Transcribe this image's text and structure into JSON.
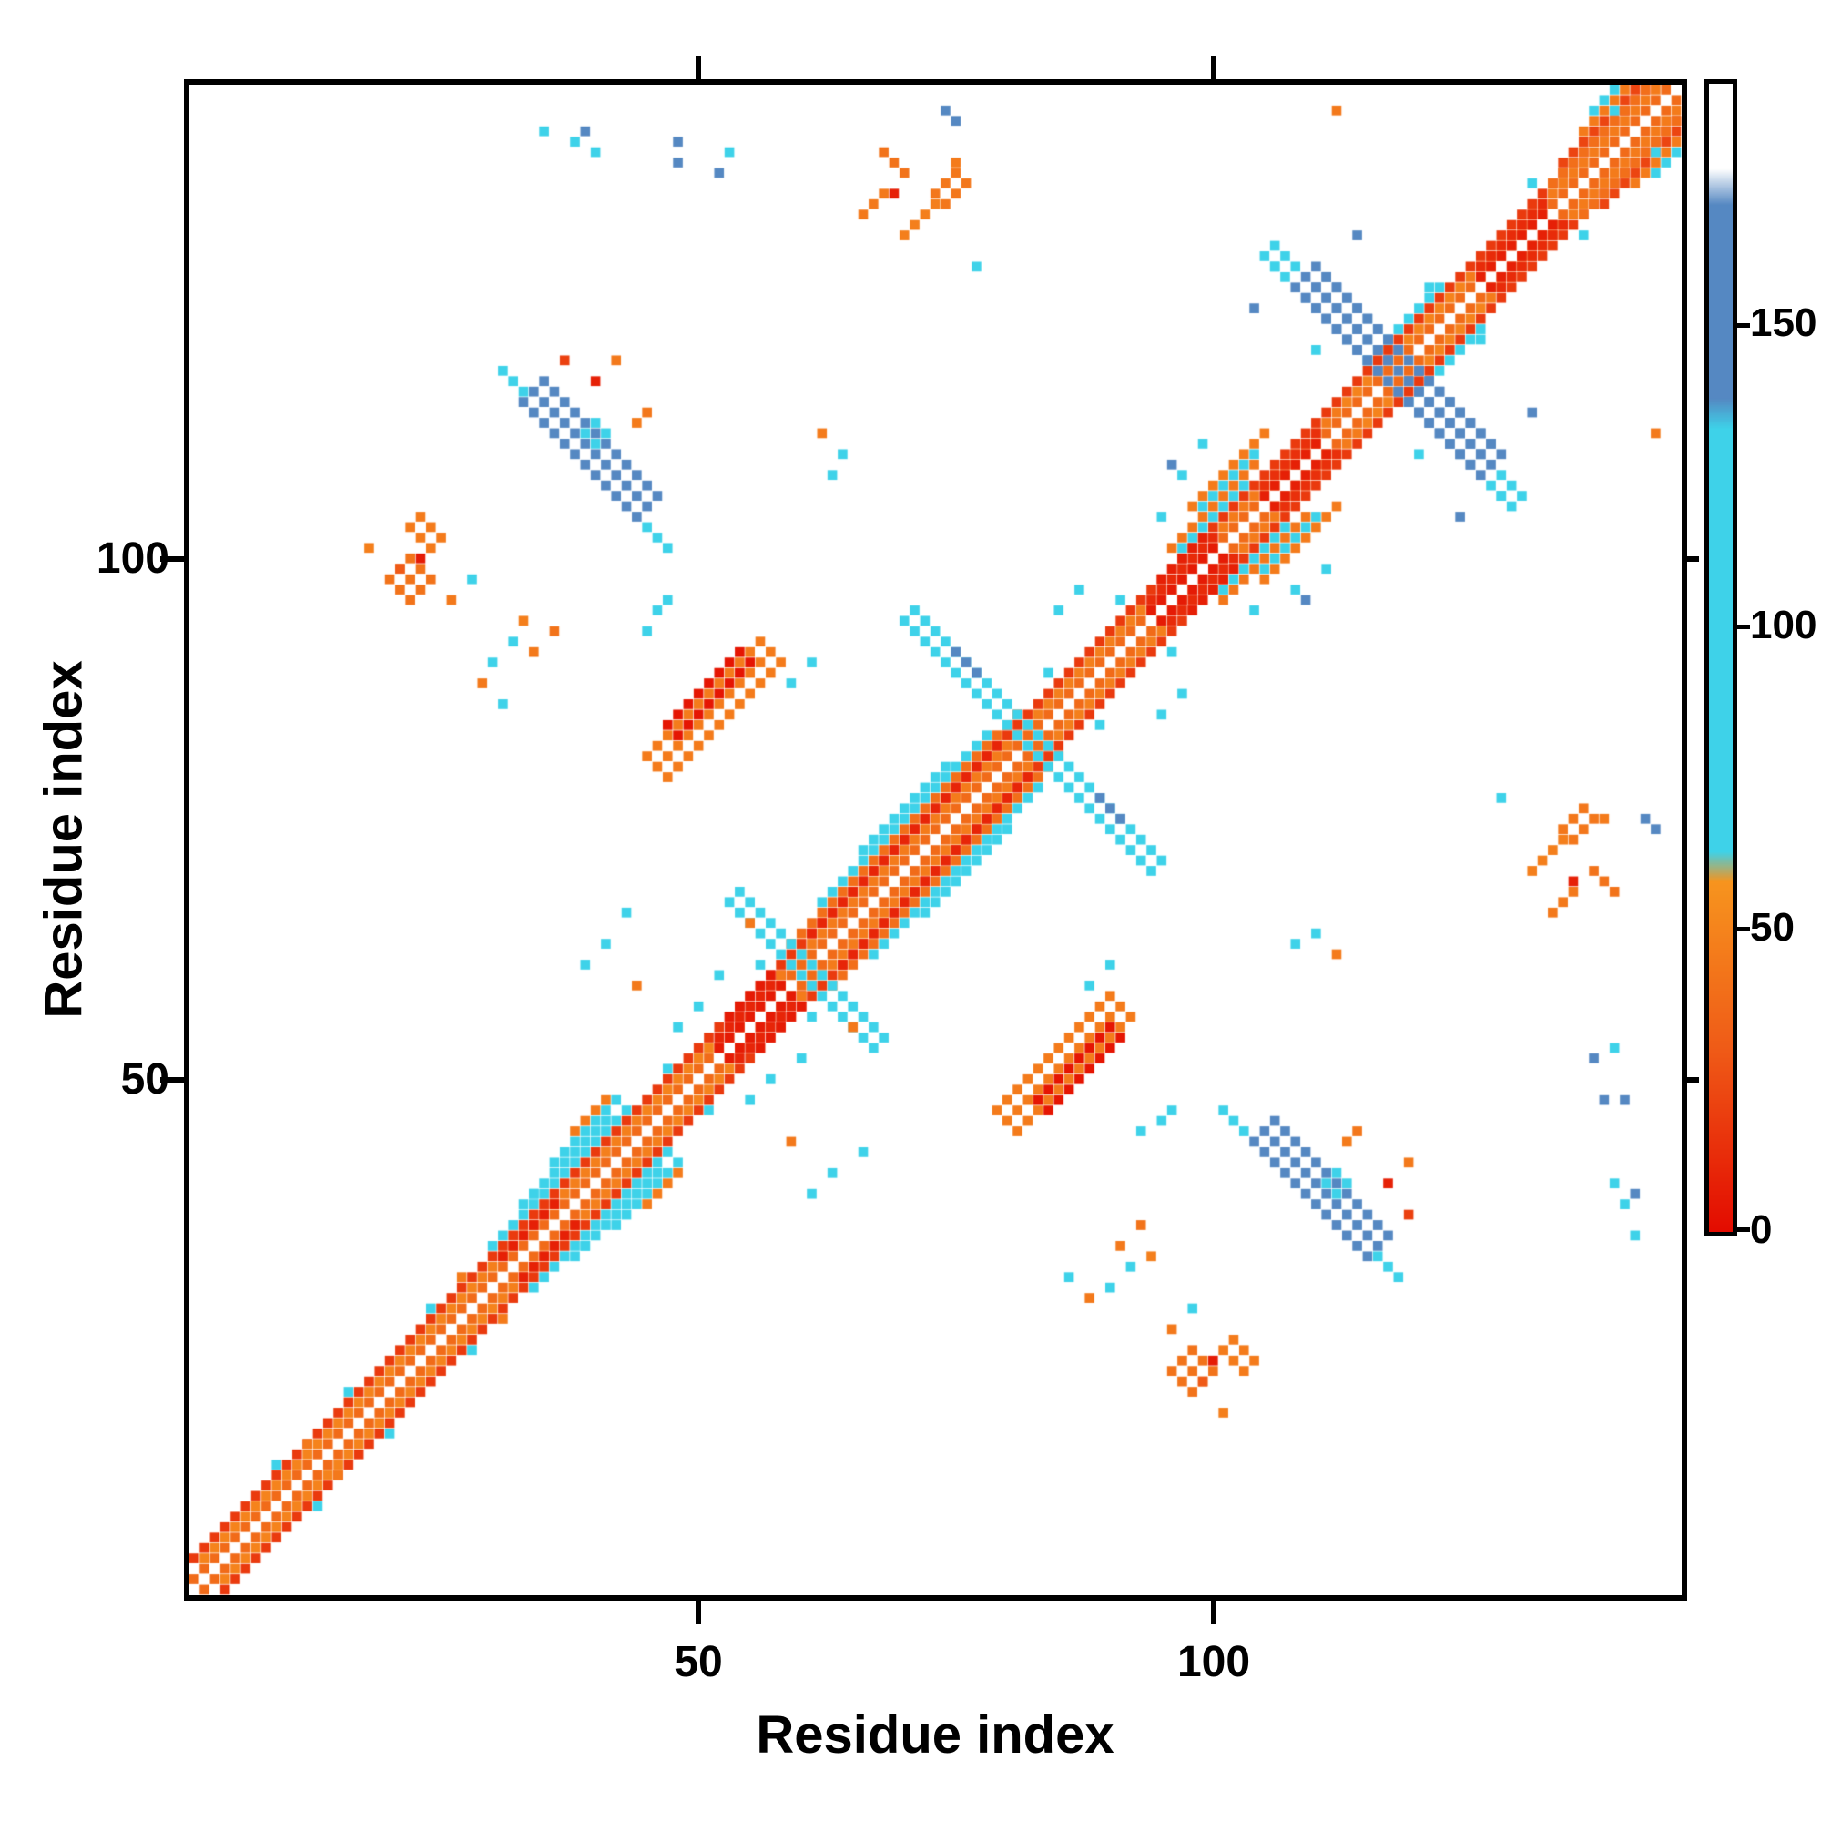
{
  "chart_data": {
    "type": "heatmap",
    "title": "",
    "xlabel": "Residue index",
    "ylabel": "Residue index",
    "n_residues": 145,
    "x_range": [
      1,
      145
    ],
    "y_range": [
      1,
      145
    ],
    "x_ticks": [
      50,
      100
    ],
    "y_ticks": [
      100,
      50
    ],
    "grid": false,
    "legend_position": "colorbar-right",
    "colorbar": {
      "ticks": [
        150,
        100,
        50,
        0
      ],
      "vmin": 0,
      "vmax": 190,
      "stops": [
        [
          0,
          "#e30b00"
        ],
        [
          30,
          "#ef5a17"
        ],
        [
          58,
          "#f7941e"
        ],
        [
          63,
          "#3ed2e9"
        ],
        [
          133,
          "#3ed2e9"
        ],
        [
          138,
          "#5588c2"
        ],
        [
          170,
          "#5588c2"
        ],
        [
          176,
          "#ffffff"
        ],
        [
          190,
          "#ffffff"
        ]
      ]
    },
    "matrix": {
      "symmetric": true,
      "diag_bands": [
        [
          1,
          144,
          1,
          38
        ],
        [
          1,
          143,
          3,
          18
        ],
        [
          2,
          28,
          2,
          50
        ],
        [
          29,
          44,
          2,
          48
        ],
        [
          30,
          43,
          4,
          85
        ],
        [
          33,
          41,
          5,
          88
        ],
        [
          31,
          36,
          2,
          8
        ],
        [
          36,
          42,
          6,
          82
        ],
        [
          38,
          41,
          7,
          46
        ],
        [
          45,
          51,
          2,
          50
        ],
        [
          52,
          58,
          1,
          6
        ],
        [
          52,
          58,
          2,
          10
        ],
        [
          53,
          57,
          3,
          6
        ],
        [
          58,
          82,
          2,
          46
        ],
        [
          59,
          81,
          4,
          40
        ],
        [
          61,
          79,
          3,
          10
        ],
        [
          62,
          78,
          5,
          87
        ],
        [
          66,
          74,
          6,
          90
        ],
        [
          83,
          93,
          2,
          48
        ],
        [
          94,
          100,
          1,
          6
        ],
        [
          94,
          100,
          2,
          12
        ],
        [
          95,
          99,
          3,
          8
        ],
        [
          96,
          104,
          5,
          44
        ],
        [
          97,
          102,
          4,
          88
        ],
        [
          98,
          105,
          7,
          46
        ],
        [
          99,
          104,
          6,
          90
        ],
        [
          101,
          112,
          2,
          46
        ],
        [
          105,
          110,
          1,
          8
        ],
        [
          105,
          110,
          2,
          14
        ],
        [
          113,
          124,
          2,
          50
        ],
        [
          115,
          122,
          4,
          86
        ],
        [
          125,
          144,
          2,
          46
        ],
        [
          126,
          132,
          1,
          8
        ],
        [
          126,
          132,
          2,
          12
        ],
        [
          133,
          143,
          3,
          40
        ],
        [
          134,
          142,
          4,
          22
        ],
        [
          136,
          141,
          5,
          46
        ],
        [
          137,
          140,
          6,
          88
        ]
      ],
      "segments": [
        [
          "d",
          45,
          81,
          12,
          3,
          46
        ],
        [
          "d",
          47,
          84,
          8,
          2,
          4
        ],
        [
          "a",
          33,
          115,
          12,
          3,
          150
        ],
        [
          "a",
          31,
          118,
          3,
          1,
          85
        ],
        [
          "a",
          45,
          103,
          3,
          1,
          85
        ],
        [
          "a",
          108,
          126,
          18,
          3,
          152
        ],
        [
          "a",
          105,
          129,
          3,
          2,
          86
        ],
        [
          "a",
          70,
          94,
          13,
          2,
          85
        ],
        [
          "a",
          53,
          67,
          8,
          2,
          82
        ],
        [
          "a",
          75,
          91,
          3,
          1,
          148
        ],
        [
          "d",
          66,
          133,
          3,
          1,
          45
        ],
        [
          "d",
          70,
          131,
          4,
          1,
          48
        ],
        [
          "a",
          68,
          139,
          3,
          1,
          42
        ],
        [
          "d",
          73,
          135,
          3,
          2,
          44
        ],
        [
          "d",
          20,
          98,
          3,
          3,
          42
        ],
        [
          "a",
          22,
          103,
          3,
          2,
          46
        ],
        [
          "d",
          39,
          112,
          2,
          2,
          88
        ]
      ],
      "dots": [
        [
          9,
          13,
          85
        ],
        [
          16,
          20,
          88
        ],
        [
          24,
          28,
          86
        ],
        [
          34,
          39,
          90
        ],
        [
          47,
          51,
          85
        ],
        [
          56,
          61,
          88
        ],
        [
          84,
          89,
          86
        ],
        [
          91,
          96,
          85
        ],
        [
          103,
          107,
          88
        ],
        [
          121,
          126,
          85
        ],
        [
          131,
          136,
          88
        ],
        [
          139,
          143,
          85
        ],
        [
          12,
          15,
          45
        ],
        [
          27,
          31,
          46
        ],
        [
          35,
          141,
          86
        ],
        [
          38,
          140,
          88
        ],
        [
          39,
          141,
          150
        ],
        [
          40,
          139,
          85
        ],
        [
          44,
          113,
          46
        ],
        [
          45,
          114,
          44
        ],
        [
          37,
          119,
          20
        ],
        [
          40,
          117,
          8
        ],
        [
          42,
          119,
          45
        ],
        [
          45,
          93,
          90
        ],
        [
          46,
          95,
          85
        ],
        [
          47,
          96,
          88
        ],
        [
          29,
          88,
          45
        ],
        [
          30,
          90,
          85
        ],
        [
          31,
          86,
          90
        ],
        [
          32,
          92,
          88
        ],
        [
          33,
          94,
          48
        ],
        [
          28,
          98,
          85
        ],
        [
          39,
          61,
          85
        ],
        [
          41,
          63,
          88
        ],
        [
          43,
          66,
          86
        ],
        [
          44,
          59,
          45
        ],
        [
          48,
          55,
          88
        ],
        [
          50,
          57,
          85
        ],
        [
          52,
          60,
          86
        ],
        [
          55,
          65,
          45
        ],
        [
          62,
          112,
          46
        ],
        [
          63,
          108,
          85
        ],
        [
          64,
          110,
          88
        ],
        [
          74,
          143,
          150
        ],
        [
          75,
          142,
          148
        ],
        [
          48,
          138,
          150
        ],
        [
          48,
          140,
          152
        ],
        [
          52,
          137,
          148
        ],
        [
          53,
          139,
          85
        ],
        [
          112,
          143,
          45
        ],
        [
          18,
          101,
          48
        ],
        [
          21,
          99,
          30
        ],
        [
          23,
          100,
          6
        ],
        [
          26,
          96,
          45
        ],
        [
          95,
          104,
          85
        ],
        [
          96,
          109,
          150
        ],
        [
          97,
          108,
          88
        ],
        [
          99,
          111,
          86
        ],
        [
          104,
          124,
          150
        ],
        [
          106,
          128,
          85
        ],
        [
          114,
          131,
          148
        ],
        [
          69,
          135,
          8
        ],
        [
          75,
          138,
          46
        ],
        [
          77,
          128,
          85
        ],
        [
          59,
          88,
          86
        ],
        [
          61,
          90,
          85
        ],
        [
          85,
          95,
          88
        ],
        [
          87,
          97,
          85
        ],
        [
          110,
          120,
          86
        ],
        [
          34,
          91,
          45
        ],
        [
          36,
          93,
          42
        ]
      ]
    }
  }
}
